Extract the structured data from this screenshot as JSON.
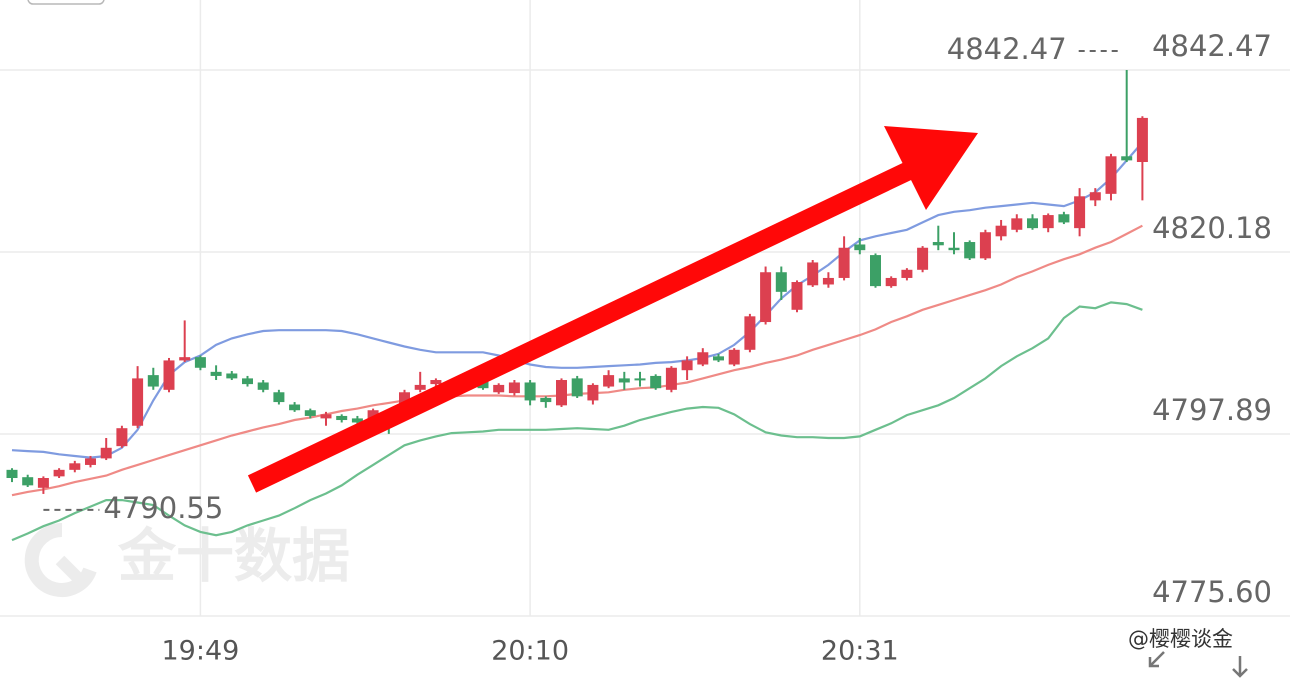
{
  "chart_data": {
    "type": "candlestick",
    "categories": [
      null,
      null,
      null,
      null,
      null,
      null,
      null,
      null,
      null,
      null,
      null,
      null,
      "19:49",
      null,
      null,
      null,
      null,
      null,
      null,
      null,
      null,
      null,
      null,
      null,
      null,
      null,
      null,
      null,
      null,
      null,
      null,
      null,
      null,
      "20:10",
      null,
      null,
      null,
      null,
      null,
      null,
      null,
      null,
      null,
      null,
      null,
      null,
      null,
      null,
      null,
      null,
      null,
      null,
      null,
      null,
      "20:31",
      null,
      null,
      null,
      null,
      null,
      null,
      null,
      null,
      null,
      null,
      null,
      null,
      null,
      null,
      null,
      null,
      null,
      null
    ],
    "open": [
      4793.5,
      4792.6,
      4791.3,
      4792.7,
      4793.5,
      4794.1,
      4794.9,
      4796.4,
      4798.9,
      4805.1,
      4803.3,
      4806.9,
      4807.3,
      4805.5,
      4805.3,
      4804.7,
      4804.2,
      4803.0,
      4801.5,
      4800.8,
      4799.8,
      4800.1,
      4799.8,
      4799.3,
      4800.2,
      4799.8,
      4803.3,
      4804.0,
      4803.0,
      4804.5,
      4804.5,
      4803.0,
      4802.9,
      4804.2,
      4802.3,
      4801.4,
      4804.7,
      4802.0,
      4803.7,
      4804.7,
      4804.7,
      4805.0,
      4803.3,
      4805.7,
      4806.4,
      4807.4,
      4806.4,
      4808.2,
      4811.6,
      4817.7,
      4813.1,
      4816.1,
      4816.2,
      4817.0,
      4821.1,
      4819.8,
      4816.0,
      4817.0,
      4818.0,
      4821.4,
      4820.7,
      4821.4,
      4819.4,
      4822.1,
      4822.9,
      4824.3,
      4823.1,
      4824.8,
      4823.1,
      4826.5,
      4827.3,
      4831.9,
      4831.2
    ],
    "high": [
      4793.7,
      4792.9,
      4792.7,
      4793.7,
      4794.6,
      4795.2,
      4797.4,
      4798.9,
      4806.2,
      4806.0,
      4807.2,
      4811.8,
      4807.5,
      4806.3,
      4805.6,
      4805.0,
      4804.5,
      4803.3,
      4801.8,
      4801.0,
      4800.6,
      4800.3,
      4800.1,
      4801.0,
      4800.8,
      4803.3,
      4805.5,
      4804.7,
      4804.1,
      4804.7,
      4804.7,
      4804.1,
      4804.5,
      4804.5,
      4802.5,
      4804.7,
      4805.0,
      4804.1,
      4805.7,
      4805.5,
      4805.5,
      4805.2,
      4806.2,
      4807.4,
      4808.4,
      4807.7,
      4808.4,
      4812.6,
      4818.4,
      4818.4,
      4816.7,
      4819.2,
      4817.7,
      4822.1,
      4821.9,
      4820.0,
      4817.2,
      4818.2,
      4820.9,
      4823.4,
      4822.6,
      4821.6,
      4822.9,
      4824.1,
      4824.8,
      4824.8,
      4824.9,
      4825.1,
      4828.0,
      4828.0,
      4832.2,
      4842.47,
      4836.8
    ],
    "low": [
      4792.0,
      4791.4,
      4790.55,
      4792.5,
      4793.2,
      4793.8,
      4794.7,
      4796.2,
      4798.6,
      4803.3,
      4803.0,
      4806.7,
      4805.7,
      4804.5,
      4804.5,
      4803.7,
      4803.0,
      4801.5,
      4800.6,
      4799.8,
      4798.9,
      4799.3,
      4799.1,
      4799.1,
      4797.9,
      4799.6,
      4803.0,
      4803.7,
      4802.8,
      4803.5,
      4803.3,
      4802.8,
      4802.6,
      4801.4,
      4801.1,
      4801.2,
      4802.3,
      4801.5,
      4803.5,
      4803.3,
      4803.7,
      4803.3,
      4803.0,
      4804.5,
      4806.2,
      4806.7,
      4806.2,
      4807.9,
      4811.3,
      4814.3,
      4812.8,
      4815.9,
      4815.8,
      4816.7,
      4819.9,
      4815.8,
      4815.8,
      4816.7,
      4817.7,
      4820.4,
      4819.9,
      4819.2,
      4819.2,
      4821.6,
      4822.6,
      4822.9,
      4822.6,
      4823.6,
      4822.1,
      4825.8,
      4826.5,
      4831.2,
      4826.5
    ],
    "close": [
      4792.5,
      4791.6,
      4792.5,
      4793.5,
      4794.3,
      4794.9,
      4796.2,
      4798.6,
      4804.7,
      4803.7,
      4806.9,
      4807.3,
      4806.0,
      4805.0,
      4804.7,
      4804.0,
      4803.3,
      4801.8,
      4800.8,
      4800.1,
      4800.3,
      4799.6,
      4799.3,
      4800.8,
      4799.8,
      4803.0,
      4803.9,
      4804.5,
      4803.9,
      4803.7,
      4803.5,
      4803.9,
      4804.2,
      4802.0,
      4801.8,
      4804.5,
      4802.5,
      4803.9,
      4805.1,
      4804.2,
      4804.5,
      4803.5,
      4806.0,
      4806.9,
      4807.9,
      4806.9,
      4808.2,
      4812.3,
      4817.7,
      4815.3,
      4816.5,
      4818.9,
      4817.0,
      4820.7,
      4820.4,
      4816.0,
      4817.0,
      4818.0,
      4820.7,
      4821.0,
      4820.4,
      4819.4,
      4822.6,
      4823.4,
      4824.3,
      4823.1,
      4824.7,
      4823.8,
      4827.0,
      4827.5,
      4831.9,
      4831.4,
      4836.6
    ],
    "up_color": "#dc4050",
    "down_color": "#3ca066",
    "bands": [
      {
        "color": "#7f9be0",
        "values": [
          4795.9,
          4795.8,
          4795.7,
          4795.4,
          4795.2,
          4795.0,
          4795.2,
          4796.2,
          4798.4,
          4802.0,
          4805.1,
          4806.7,
          4807.5,
          4808.8,
          4809.6,
          4810.1,
          4810.5,
          4810.6,
          4810.6,
          4810.6,
          4810.6,
          4810.5,
          4810.1,
          4809.6,
          4809.1,
          4808.6,
          4808.2,
          4807.9,
          4807.9,
          4807.9,
          4807.9,
          4807.5,
          4806.9,
          4806.4,
          4806.1,
          4806.0,
          4806.0,
          4806.1,
          4806.2,
          4806.3,
          4806.4,
          4806.6,
          4806.7,
          4806.9,
          4807.2,
          4807.7,
          4808.8,
          4810.4,
          4812.4,
          4814.5,
          4816.1,
          4817.3,
          4818.6,
          4820.2,
          4821.6,
          4822.1,
          4822.5,
          4822.9,
          4823.8,
          4824.7,
          4825.1,
          4825.3,
          4825.6,
          4825.8,
          4826.0,
          4826.2,
          4826.0,
          4825.8,
          4826.5,
          4827.5,
          4829.2,
          4831.4,
          4833.6
        ]
      },
      {
        "color": "#ef8a86",
        "values": [
          4790.4,
          4790.8,
          4791.1,
          4791.5,
          4792.0,
          4792.4,
          4792.8,
          4793.5,
          4794.1,
          4794.7,
          4795.3,
          4795.9,
          4796.5,
          4797.1,
          4797.7,
          4798.2,
          4798.7,
          4799.1,
          4799.6,
          4799.9,
          4800.3,
          4800.7,
          4801.0,
          4801.4,
          4801.7,
          4802.0,
          4802.3,
          4802.4,
          4802.5,
          4802.6,
          4802.6,
          4802.6,
          4802.5,
          4802.5,
          4802.5,
          4802.6,
          4802.8,
          4802.9,
          4803.0,
          4803.3,
          4803.5,
          4803.6,
          4803.9,
          4804.2,
          4804.7,
          4805.2,
          4805.7,
          4806.1,
          4806.6,
          4807.0,
          4807.5,
          4808.2,
          4808.8,
          4809.4,
          4810.0,
          4810.7,
          4811.6,
          4812.3,
          4813.1,
          4813.7,
          4814.3,
          4814.9,
          4815.5,
          4816.2,
          4817.1,
          4817.8,
          4818.6,
          4819.3,
          4819.9,
          4820.7,
          4821.4,
          4822.4,
          4823.4
        ]
      },
      {
        "color": "#6cbf8e",
        "values": [
          4784.9,
          4785.7,
          4786.6,
          4787.3,
          4788.2,
          4789.0,
          4789.8,
          4789.8,
          4789.5,
          4789.2,
          4787.9,
          4786.7,
          4785.9,
          4785.5,
          4785.9,
          4786.7,
          4787.3,
          4787.9,
          4788.8,
          4789.8,
          4790.6,
          4791.6,
          4792.9,
          4794.1,
          4795.3,
          4796.5,
          4797.1,
          4797.6,
          4798.0,
          4798.1,
          4798.2,
          4798.4,
          4798.4,
          4798.4,
          4798.4,
          4798.5,
          4798.6,
          4798.5,
          4798.4,
          4798.9,
          4799.6,
          4800.1,
          4800.6,
          4801.0,
          4801.2,
          4801.1,
          4800.3,
          4799.1,
          4798.1,
          4797.7,
          4797.5,
          4797.5,
          4797.4,
          4797.4,
          4797.6,
          4798.4,
          4799.2,
          4800.2,
          4800.8,
          4801.4,
          4802.3,
          4803.5,
          4804.7,
          4806.2,
          4807.4,
          4808.4,
          4809.6,
          4812.1,
          4813.5,
          4813.3,
          4814.0,
          4813.8,
          4813.1
        ]
      }
    ],
    "high_annotation": 4842.47,
    "low_annotation": 4790.55,
    "ylim": [
      4775.6,
      4851.04
    ],
    "yticks": [
      {
        "value": 4775.6,
        "label": "4775.60"
      },
      4797.89,
      4820.18,
      4842.47
    ],
    "grid": true,
    "watermark": "金十数据",
    "credit": "@樱樱谈金"
  }
}
